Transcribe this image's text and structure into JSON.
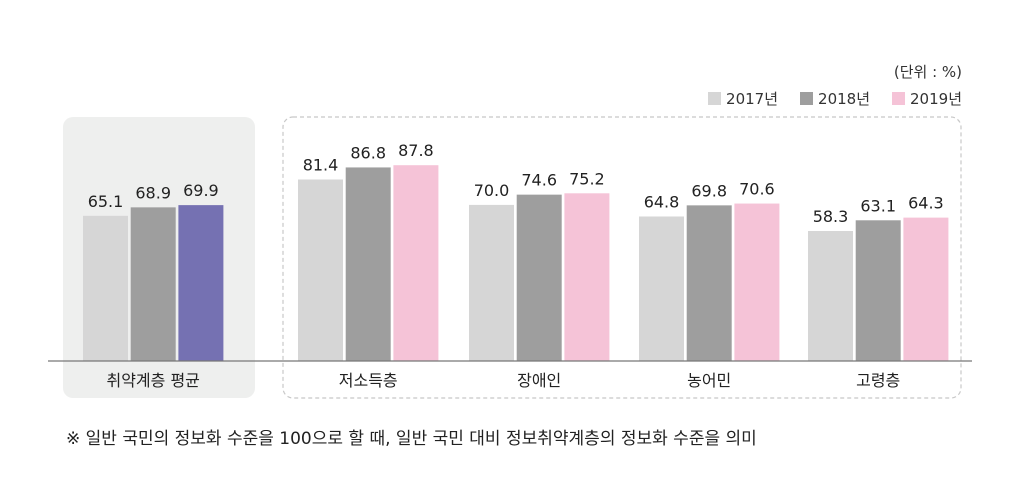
{
  "unit_label": "(단위 : %)",
  "footnote": "※ 일반 국민의 정보화 수준을 100으로 할 때, 일반 국민 대비 정보취약계층의 정보화 수준을 의미",
  "legend": [
    {
      "label": "2017년",
      "color": "#d6d6d6"
    },
    {
      "label": "2018년",
      "color": "#9e9e9e"
    },
    {
      "label": "2019년",
      "color": "#f5c3d7"
    }
  ],
  "highlight_color": "#7571b2",
  "chart_data": {
    "type": "bar",
    "title": "",
    "xlabel": "",
    "ylabel": "",
    "ylim": [
      0,
      100
    ],
    "grid": false,
    "legend_position": "top-right",
    "categories": [
      "취약계층 평균",
      "저소득층",
      "장애인",
      "농어민",
      "고령층"
    ],
    "series": [
      {
        "name": "2017년",
        "values": [
          65.1,
          81.4,
          70.0,
          64.8,
          58.3
        ]
      },
      {
        "name": "2018년",
        "values": [
          68.9,
          86.8,
          74.6,
          69.8,
          63.1
        ]
      },
      {
        "name": "2019년",
        "values": [
          69.9,
          87.8,
          75.2,
          70.6,
          64.3
        ]
      }
    ],
    "value_labels": [
      [
        "65.1",
        "81.4",
        "70.0",
        "64.8",
        "58.3"
      ],
      [
        "68.9",
        "86.8",
        "74.6",
        "69.8",
        "63.1"
      ],
      [
        "69.9",
        "87.8",
        "75.2",
        "70.6",
        "64.3"
      ]
    ]
  }
}
